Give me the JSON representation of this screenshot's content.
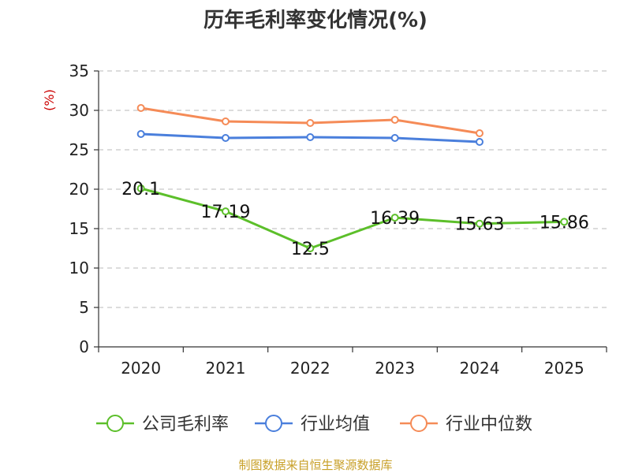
{
  "title": "历年毛利率变化情况(%)",
  "source": "制图数据来自恒生聚源数据库",
  "chart_data": {
    "type": "line",
    "title": "历年毛利率变化情况(%)",
    "ylabel": "(%)",
    "xlabel": "",
    "categories": [
      "2020",
      "2021",
      "2022",
      "2023",
      "2024",
      "2025"
    ],
    "ylim": [
      0,
      35
    ],
    "yticks": [
      0,
      5,
      10,
      15,
      20,
      25,
      30,
      35
    ],
    "grid": true,
    "legend_position": "bottom",
    "series": [
      {
        "name": "公司毛利率",
        "color": "#5cbf2a",
        "values": [
          20.1,
          17.19,
          12.5,
          16.39,
          15.63,
          15.86
        ],
        "labels": [
          "20.1",
          "17.19",
          "12.5",
          "16.39",
          "15.63",
          "15.86"
        ]
      },
      {
        "name": "行业均值",
        "color": "#4a7fdc",
        "values": [
          27.0,
          26.5,
          26.6,
          26.5,
          26.0,
          null
        ]
      },
      {
        "name": "行业中位数",
        "color": "#f58b57",
        "values": [
          30.3,
          28.6,
          28.4,
          28.8,
          27.1,
          null
        ]
      }
    ]
  }
}
